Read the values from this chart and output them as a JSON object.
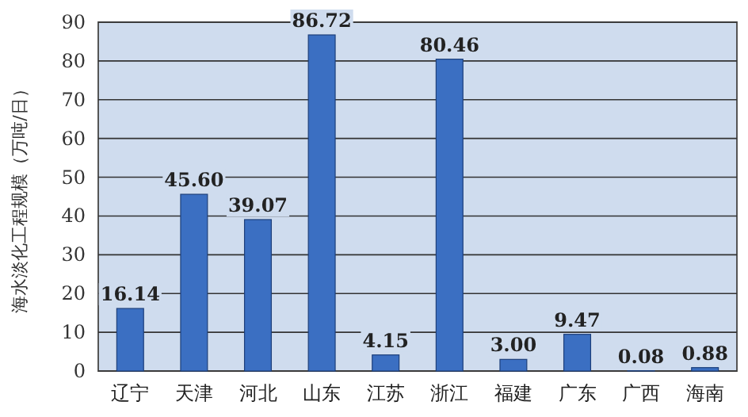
{
  "chart_data": {
    "type": "bar",
    "ylabel": "海水淡化工程规模（万吨/日）",
    "categories": [
      "辽宁",
      "天津",
      "河北",
      "山东",
      "江苏",
      "浙江",
      "福建",
      "广东",
      "广西",
      "海南"
    ],
    "values": [
      16.14,
      45.6,
      39.07,
      86.72,
      4.15,
      80.46,
      3.0,
      9.47,
      0.08,
      0.88
    ],
    "value_labels": [
      "16.14",
      "45.60",
      "39.07",
      "86.72",
      "4.15",
      "80.46",
      "3.00",
      "9.47",
      "0.08",
      "0.88"
    ],
    "color": "#3b6fc2",
    "ylim": [
      0,
      90
    ],
    "yticks": [
      0,
      10,
      20,
      30,
      40,
      50,
      60,
      70,
      80,
      90
    ],
    "grid": "y"
  }
}
